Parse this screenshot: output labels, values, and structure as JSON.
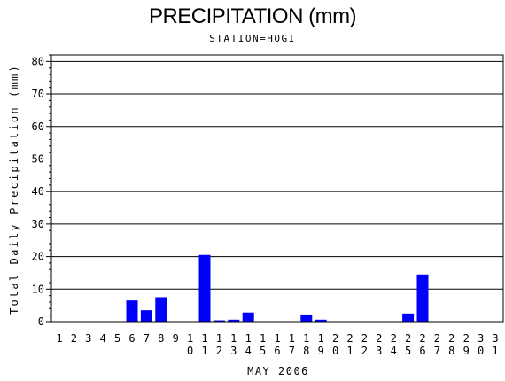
{
  "chart_data": {
    "type": "bar",
    "title": "PRECIPITATION (mm)",
    "subtitle": "STATION=HOGI",
    "xlabel": "MAY 2006",
    "ylabel": "Total Daily Precipitation (mm)",
    "ylim": [
      0,
      82
    ],
    "yticks": [
      0,
      10,
      20,
      30,
      40,
      50,
      60,
      70,
      80
    ],
    "grid": true,
    "bar_color": "#0000ff",
    "categories": [
      "1",
      "2",
      "3",
      "4",
      "5",
      "6",
      "7",
      "8",
      "9",
      "10",
      "11",
      "12",
      "13",
      "14",
      "15",
      "16",
      "17",
      "18",
      "19",
      "20",
      "21",
      "22",
      "23",
      "24",
      "25",
      "26",
      "27",
      "28",
      "29",
      "30",
      "31"
    ],
    "values": [
      0,
      0,
      0,
      0,
      0,
      6.5,
      3.5,
      7.5,
      0,
      0,
      20.5,
      0.4,
      0.6,
      2.8,
      0,
      0,
      0,
      2.2,
      0.6,
      0,
      0,
      0,
      0,
      0,
      2.5,
      14.5,
      0,
      0,
      0,
      0,
      0
    ]
  }
}
